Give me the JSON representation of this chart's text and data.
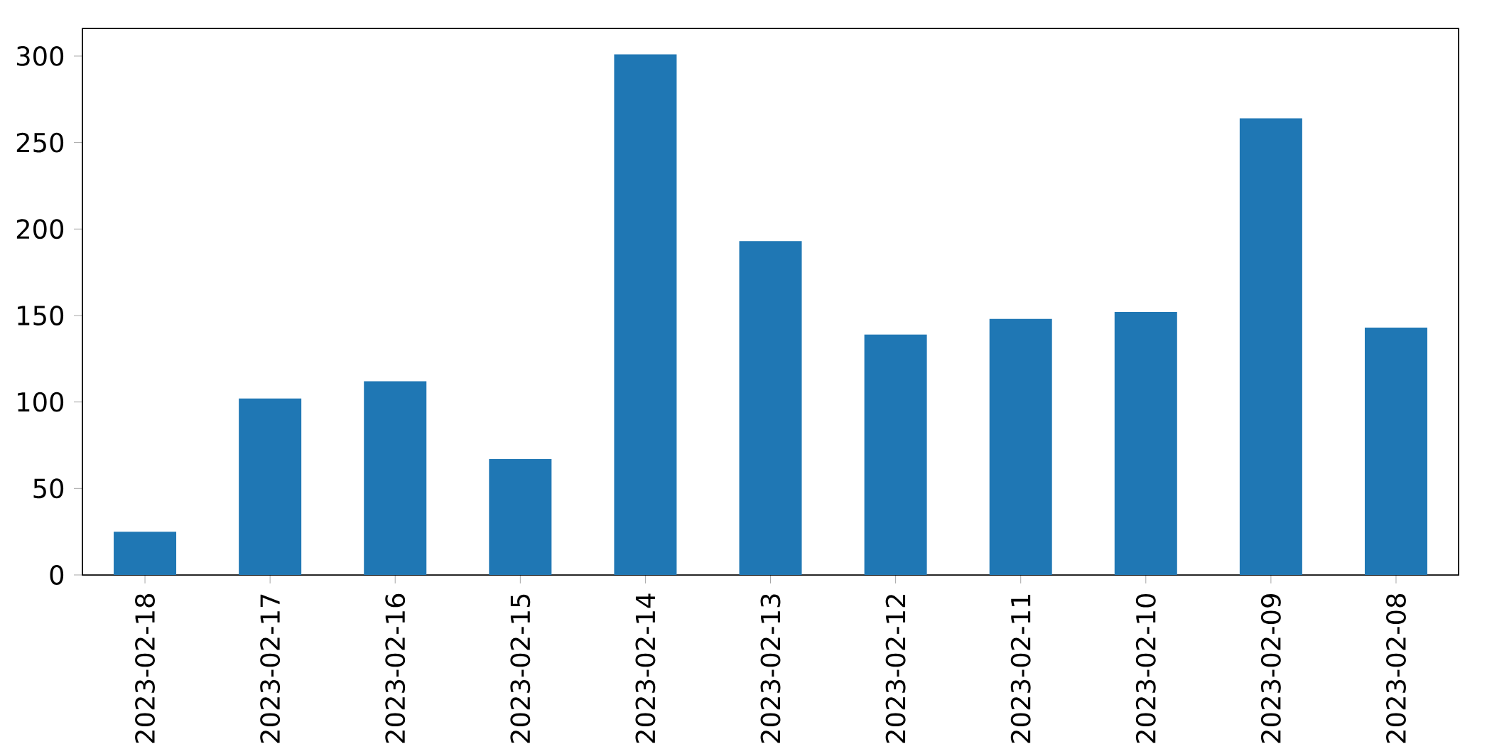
{
  "chart_data": {
    "type": "bar",
    "categories": [
      "2023-02-18",
      "2023-02-17",
      "2023-02-16",
      "2023-02-15",
      "2023-02-14",
      "2023-02-13",
      "2023-02-12",
      "2023-02-11",
      "2023-02-10",
      "2023-02-09",
      "2023-02-08"
    ],
    "values": [
      25,
      102,
      112,
      67,
      301,
      193,
      139,
      148,
      152,
      264,
      143
    ],
    "color": "#1f77b4",
    "ylim": [
      0,
      316
    ],
    "yticks": [
      0,
      50,
      100,
      150,
      200,
      250,
      300
    ]
  }
}
